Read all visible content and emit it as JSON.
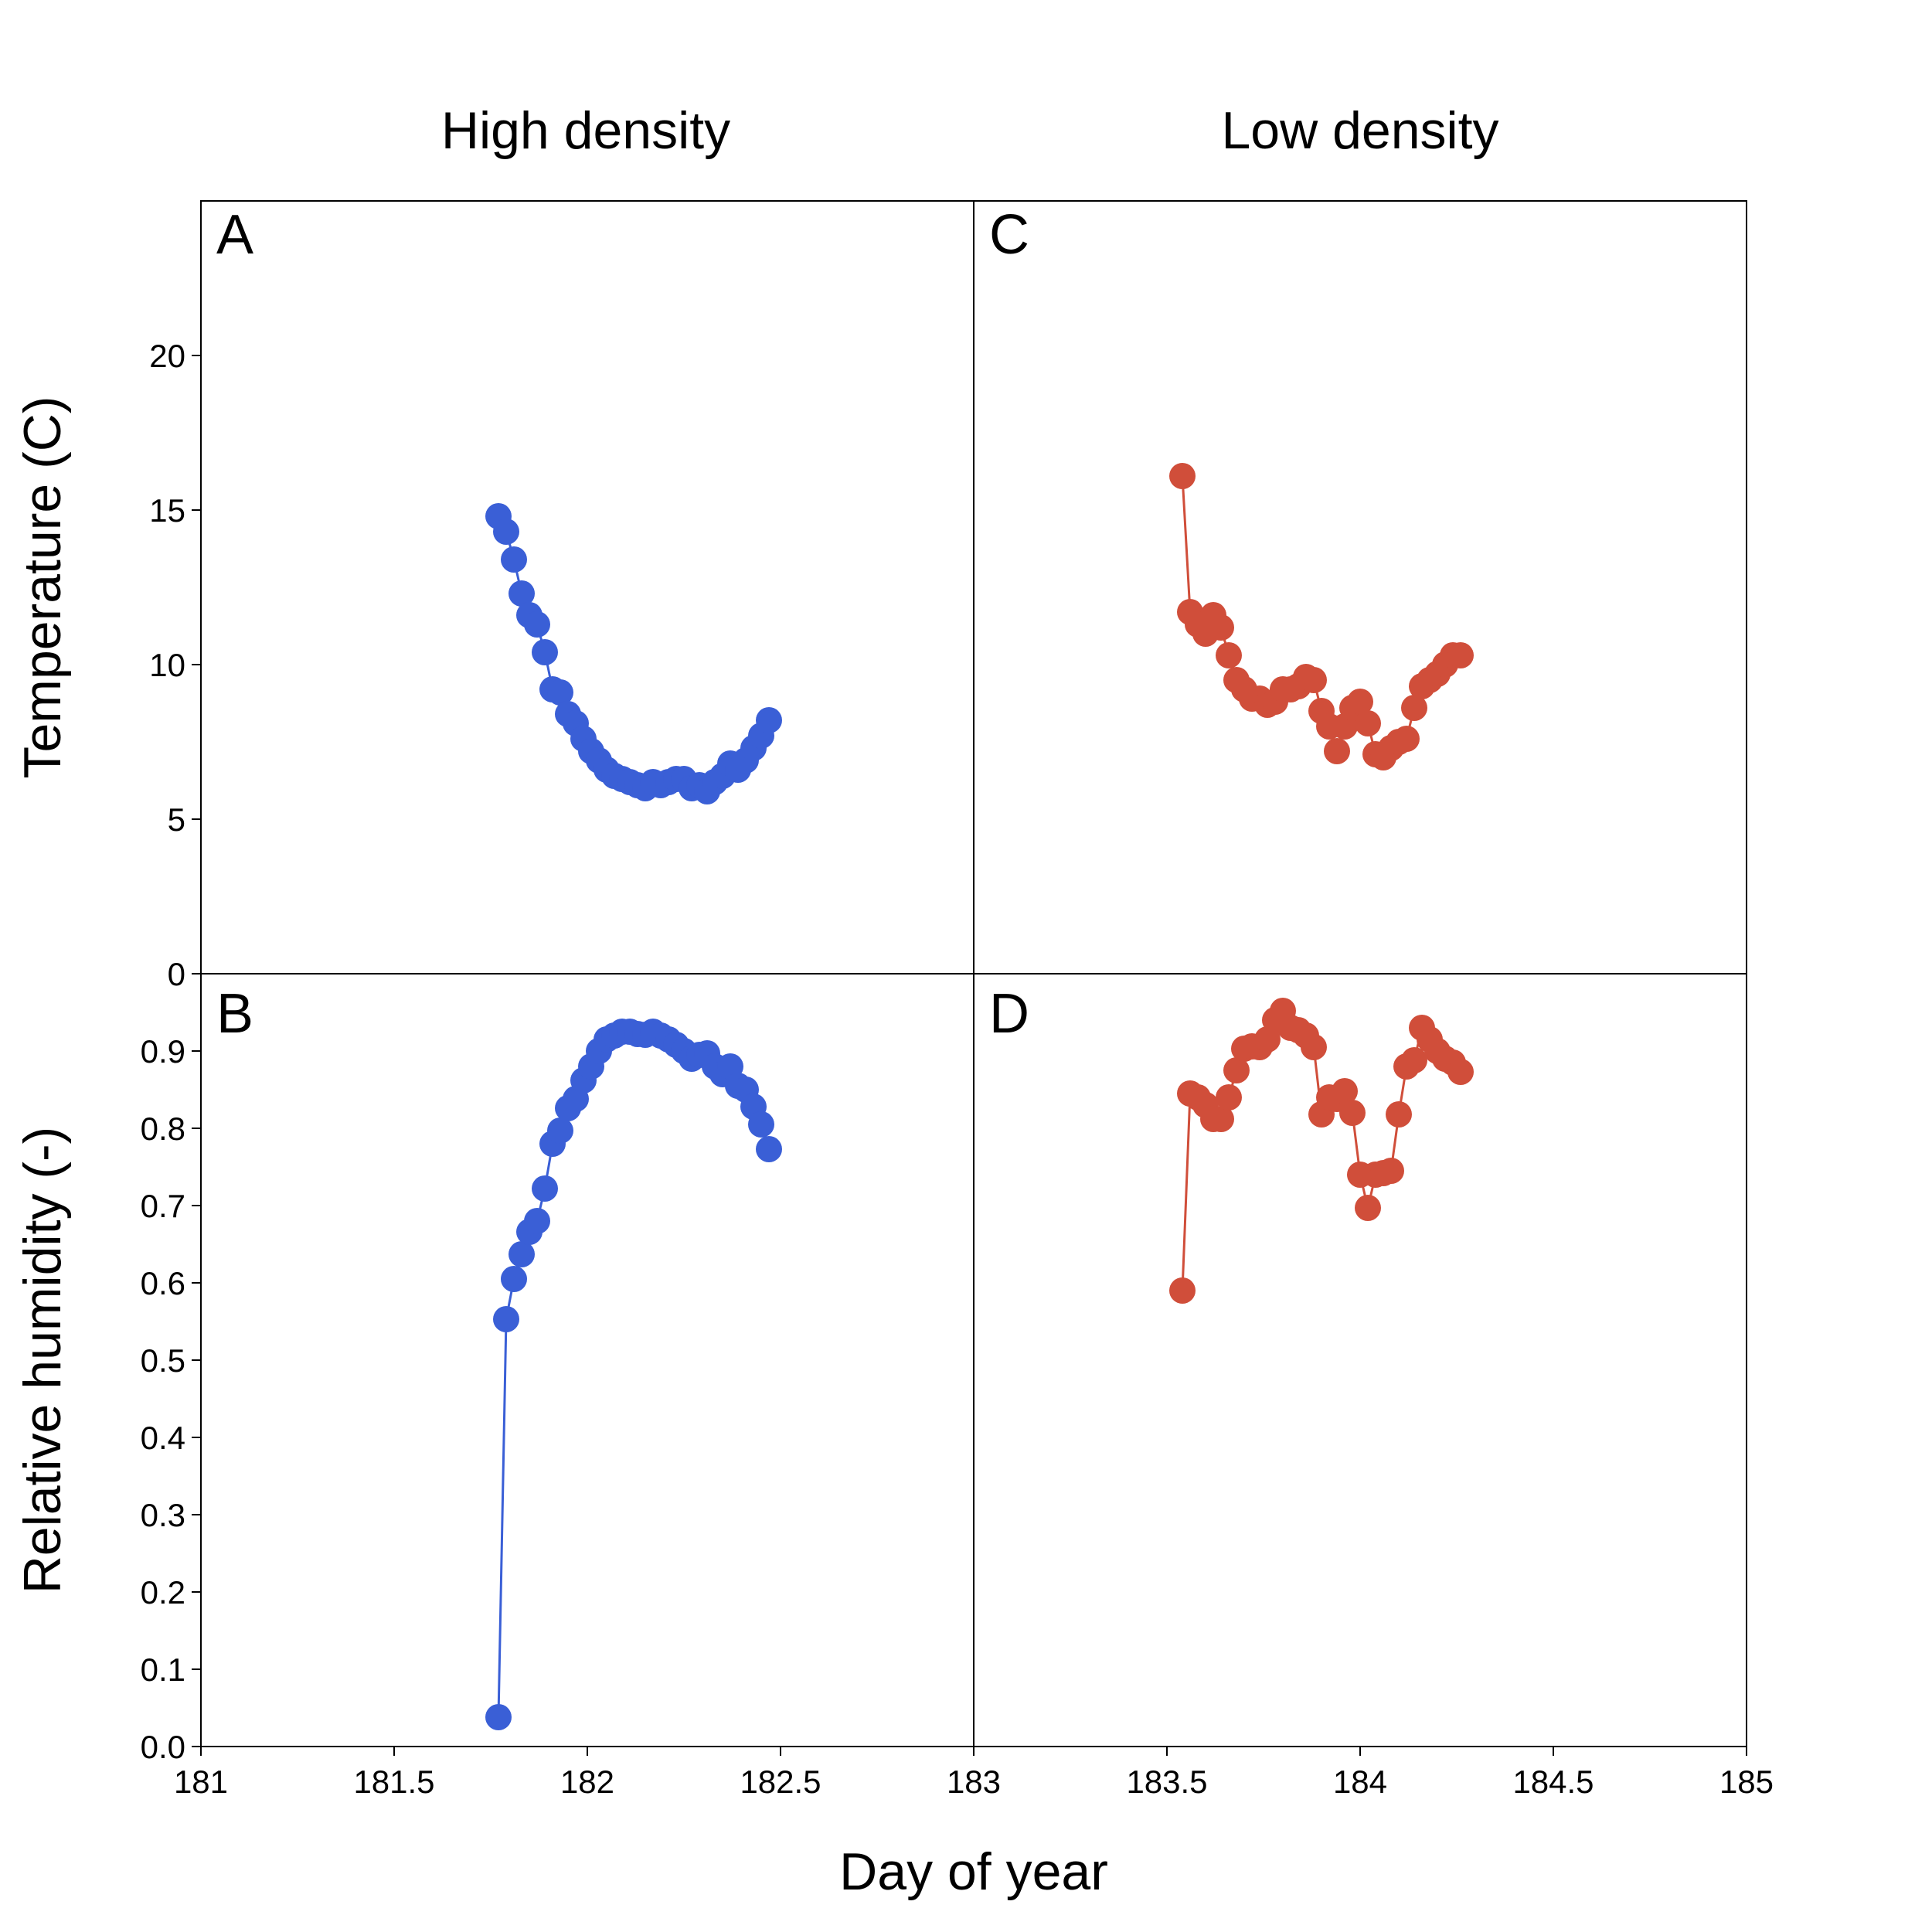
{
  "column_titles": [
    "High density",
    "Low density"
  ],
  "colors": {
    "high": "#3a5fd6",
    "low": "#d04e3a"
  },
  "chart_data": [
    {
      "type": "line",
      "panel": "A",
      "column": "High density",
      "ylabel": "Temperature (C)",
      "xlim": [
        181,
        183
      ],
      "ylim": [
        0,
        25
      ],
      "yticks": [
        0,
        5,
        10,
        15,
        20
      ],
      "series": [
        {
          "x": [
            181.77,
            181.79,
            181.81,
            181.83,
            181.85,
            181.87,
            181.89,
            181.91,
            181.93,
            181.95,
            181.97,
            181.99,
            182.01,
            182.03,
            182.05,
            182.07,
            182.09,
            182.11,
            182.13,
            182.15,
            182.17,
            182.19,
            182.21,
            182.23,
            182.25,
            182.27,
            182.29,
            182.31,
            182.33,
            182.35,
            182.37,
            182.39,
            182.41,
            182.43,
            182.45,
            182.47
          ],
          "y": [
            14.8,
            14.3,
            13.4,
            12.3,
            11.6,
            11.3,
            10.4,
            9.2,
            9.1,
            8.4,
            8.1,
            7.6,
            7.2,
            6.9,
            6.6,
            6.4,
            6.3,
            6.2,
            6.1,
            6.0,
            6.2,
            6.1,
            6.2,
            6.3,
            6.3,
            6.0,
            6.1,
            5.9,
            6.2,
            6.4,
            6.8,
            6.6,
            6.9,
            7.3,
            7.7,
            8.2
          ]
        }
      ]
    },
    {
      "type": "line",
      "panel": "B",
      "column": "High density",
      "ylabel": "Relative humidity (-)",
      "xlim": [
        181,
        183
      ],
      "ylim": [
        0,
        1
      ],
      "yticks": [
        0.0,
        0.1,
        0.2,
        0.3,
        0.4,
        0.5,
        0.6,
        0.7,
        0.8,
        0.9
      ],
      "series": [
        {
          "x": [
            181.77,
            181.79,
            181.81,
            181.83,
            181.85,
            181.87,
            181.89,
            181.91,
            181.93,
            181.95,
            181.97,
            181.99,
            182.01,
            182.03,
            182.05,
            182.07,
            182.09,
            182.11,
            182.13,
            182.15,
            182.17,
            182.19,
            182.21,
            182.23,
            182.25,
            182.27,
            182.29,
            182.31,
            182.33,
            182.35,
            182.37,
            182.39,
            182.41,
            182.43,
            182.45,
            182.47
          ],
          "y": [
            0.038,
            0.553,
            0.605,
            0.637,
            0.666,
            0.68,
            0.722,
            0.78,
            0.797,
            0.826,
            0.838,
            0.862,
            0.88,
            0.9,
            0.915,
            0.92,
            0.925,
            0.925,
            0.922,
            0.921,
            0.925,
            0.92,
            0.915,
            0.908,
            0.9,
            0.89,
            0.895,
            0.897,
            0.88,
            0.87,
            0.88,
            0.855,
            0.85,
            0.828,
            0.805,
            0.773
          ]
        }
      ]
    },
    {
      "type": "line",
      "panel": "C",
      "column": "Low density",
      "xlim": [
        183,
        185
      ],
      "ylim": [
        0,
        25
      ],
      "series": [
        {
          "x": [
            183.54,
            183.56,
            183.58,
            183.6,
            183.62,
            183.64,
            183.66,
            183.68,
            183.7,
            183.72,
            183.74,
            183.76,
            183.78,
            183.8,
            183.82,
            183.84,
            183.86,
            183.88,
            183.9,
            183.92,
            183.94,
            183.96,
            183.98,
            184.0,
            184.02,
            184.04,
            184.06,
            184.08,
            184.1,
            184.12,
            184.14,
            184.16,
            184.18,
            184.2,
            184.22,
            184.24,
            184.26
          ],
          "y": [
            16.1,
            11.7,
            11.3,
            11.0,
            11.6,
            11.2,
            10.3,
            9.5,
            9.2,
            8.9,
            8.9,
            8.7,
            8.8,
            9.2,
            9.2,
            9.3,
            9.6,
            9.5,
            8.5,
            8.0,
            7.2,
            8.0,
            8.6,
            8.8,
            8.1,
            7.1,
            7.0,
            7.3,
            7.5,
            7.6,
            8.6,
            9.3,
            9.5,
            9.7,
            10.0,
            10.3,
            10.3
          ]
        }
      ]
    },
    {
      "type": "line",
      "panel": "D",
      "column": "Low density",
      "xlim": [
        183,
        185
      ],
      "ylim": [
        0,
        1
      ],
      "series": [
        {
          "x": [
            183.54,
            183.56,
            183.58,
            183.6,
            183.62,
            183.64,
            183.66,
            183.68,
            183.7,
            183.72,
            183.74,
            183.76,
            183.78,
            183.8,
            183.82,
            183.84,
            183.86,
            183.88,
            183.9,
            183.92,
            183.94,
            183.96,
            183.98,
            184.0,
            184.02,
            184.04,
            184.06,
            184.08,
            184.1,
            184.12,
            184.14,
            184.16,
            184.18,
            184.2,
            184.22,
            184.24,
            184.26
          ],
          "y": [
            0.59,
            0.845,
            0.84,
            0.83,
            0.812,
            0.812,
            0.84,
            0.875,
            0.903,
            0.906,
            0.905,
            0.915,
            0.94,
            0.952,
            0.93,
            0.927,
            0.92,
            0.905,
            0.818,
            0.84,
            0.838,
            0.848,
            0.82,
            0.74,
            0.697,
            0.74,
            0.742,
            0.745,
            0.818,
            0.88,
            0.888,
            0.93,
            0.915,
            0.9,
            0.89,
            0.885,
            0.873
          ]
        }
      ]
    }
  ],
  "x_axis": {
    "label": "Day of year",
    "ticks": [
      {
        "value": 181,
        "label": "181"
      },
      {
        "value": 181.5,
        "label": "181.5"
      },
      {
        "value": 182,
        "label": "182"
      },
      {
        "value": 182.5,
        "label": "182.5"
      },
      {
        "value": 183,
        "label": "183"
      },
      {
        "value": 183.5,
        "label": "183.5"
      },
      {
        "value": 184,
        "label": "184"
      },
      {
        "value": 184.5,
        "label": "184.5"
      },
      {
        "value": 185,
        "label": "185"
      }
    ]
  },
  "y_tick_labels": {
    "top": [
      "0",
      "5",
      "10",
      "15",
      "20"
    ],
    "bottom": [
      "0.0",
      "0.1",
      "0.2",
      "0.3",
      "0.4",
      "0.5",
      "0.6",
      "0.7",
      "0.8",
      "0.9"
    ]
  }
}
